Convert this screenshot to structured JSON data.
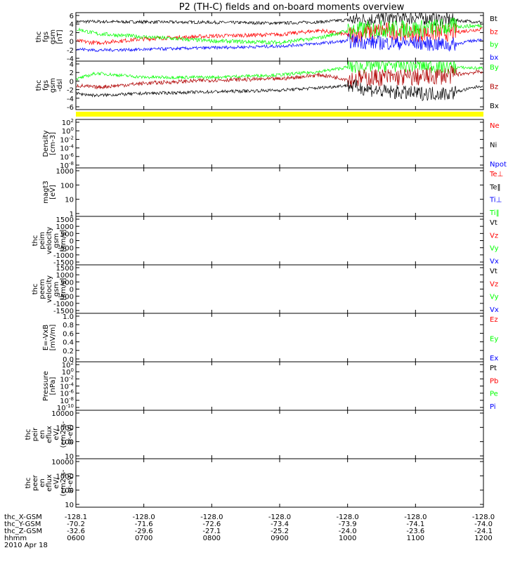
{
  "title": "P2 (TH-C) fields and on-board moments overview",
  "colors": {
    "black": "#000000",
    "red": "#ff0000",
    "green": "#00ff00",
    "blue": "#0000ff",
    "darkred": "#b00000",
    "yellow": "#ffff00",
    "gray": "#666666"
  },
  "chart_data": [
    {
      "type": "line",
      "ylabel": [
        "thc",
        "fgs",
        "gsm",
        "[nT]"
      ],
      "yticks": [
        "6",
        "4",
        "2",
        "0",
        "-2",
        "-4"
      ],
      "ylim": [
        -6,
        6
      ],
      "series": [
        {
          "name": "Bt",
          "color": "black",
          "noise": 0.4,
          "x": [
            6.0,
            7.0,
            8.0,
            9.0,
            9.6,
            10.0,
            10.5,
            11.0,
            11.5,
            12.0
          ],
          "y": [
            3.8,
            3.7,
            3.6,
            3.4,
            3.7,
            4.2,
            4.5,
            4.8,
            4.2,
            3.6
          ]
        },
        {
          "name": "bz",
          "color": "red",
          "noise": 0.5,
          "x": [
            6.0,
            6.3,
            7.0,
            8.0,
            9.0,
            9.6,
            10.0,
            10.5,
            11.0,
            11.5,
            12.0
          ],
          "y": [
            -1.0,
            -1.5,
            -0.5,
            0.2,
            0.6,
            1.6,
            0.5,
            1.5,
            1.0,
            1.0,
            2.0
          ]
        },
        {
          "name": "by",
          "color": "green",
          "noise": 0.5,
          "x": [
            6.0,
            6.3,
            7.0,
            8.0,
            9.0,
            9.6,
            10.0,
            10.5,
            11.0,
            11.5,
            12.0
          ],
          "y": [
            2.0,
            0.8,
            0.0,
            -1.0,
            -1.4,
            -0.2,
            1.5,
            2.0,
            2.0,
            2.5,
            2.8
          ]
        },
        {
          "name": "bx",
          "color": "blue",
          "noise": 0.4,
          "x": [
            6.0,
            6.3,
            7.0,
            8.0,
            9.0,
            9.6,
            10.0,
            10.5,
            11.0,
            11.5,
            12.0
          ],
          "y": [
            -3.0,
            -3.3,
            -3.1,
            -2.7,
            -2.3,
            -1.6,
            -1.0,
            -1.5,
            -1.5,
            -2.0,
            -0.5
          ]
        }
      ]
    },
    {
      "type": "line",
      "ylabel": [
        "thc",
        "fgs",
        "gsm",
        "-dsl"
      ],
      "yticks": [
        "4",
        "2",
        "0",
        "-2",
        "-4",
        "-6"
      ],
      "ylim": [
        -7,
        5
      ],
      "series": [
        {
          "name": "By",
          "color": "green",
          "noise": 0.4,
          "x": [
            6.0,
            6.3,
            7.0,
            8.0,
            9.0,
            9.6,
            10.0,
            10.5,
            11.0,
            11.5,
            12.0
          ],
          "y": [
            0.5,
            2.0,
            1.0,
            1.0,
            1.6,
            2.4,
            3.5,
            4.0,
            4.0,
            3.5,
            3.2
          ]
        },
        {
          "name": "Bz",
          "color": "darkred",
          "noise": 0.5,
          "x": [
            6.0,
            6.3,
            7.0,
            8.0,
            9.0,
            9.6,
            10.0,
            10.5,
            11.0,
            11.5,
            12.0
          ],
          "y": [
            -1.0,
            -1.5,
            -0.5,
            0.3,
            0.6,
            1.6,
            0.5,
            1.0,
            1.0,
            1.5,
            2.5
          ]
        },
        {
          "name": "Bx",
          "color": "black",
          "noise": 0.4,
          "x": [
            6.0,
            6.3,
            7.0,
            8.0,
            9.0,
            9.6,
            10.0,
            10.5,
            11.0,
            11.5,
            12.0
          ],
          "y": [
            -3.0,
            -3.5,
            -3.0,
            -2.6,
            -2.2,
            -1.6,
            -1.0,
            -2.5,
            -3.0,
            -3.0,
            -1.0
          ]
        }
      ]
    },
    {
      "type": "line",
      "ylabel": [
        "Density",
        "[cm-3]"
      ],
      "yticks": [
        "10^2",
        "10^0",
        "10^-2",
        "10^-4",
        "10^-6",
        "10^-8"
      ],
      "legend": [
        {
          "text": "Ne",
          "color": "red"
        },
        {
          "text": "Ni",
          "color": "black"
        },
        {
          "text": "Npot",
          "color": "blue"
        }
      ]
    },
    {
      "type": "line",
      "ylabel": [
        "magt3",
        "[eV]"
      ],
      "yticks": [
        "1000",
        "100",
        "10",
        "1"
      ],
      "legend": [
        {
          "text": "Te⊥",
          "color": "red"
        },
        {
          "text": "Te‖",
          "color": "black"
        },
        {
          "text": "Ti⊥",
          "color": "blue"
        },
        {
          "text": "Ti‖",
          "color": "green"
        }
      ]
    },
    {
      "type": "line",
      "ylabel": [
        "thc",
        "peim",
        "velocity",
        "gsm",
        "[km/s]"
      ],
      "yticks": [
        "1500",
        "1000",
        "500",
        "0",
        "-500",
        "-1000",
        "-1500"
      ],
      "legend": [
        {
          "text": "Vt",
          "color": "black"
        },
        {
          "text": "Vz",
          "color": "red"
        },
        {
          "text": "Vy",
          "color": "green"
        },
        {
          "text": "Vx",
          "color": "blue"
        }
      ]
    },
    {
      "type": "line",
      "ylabel": [
        "thc",
        "peem",
        "velocity",
        "gsm",
        "[km/s]"
      ],
      "yticks": [
        "1500",
        "1000",
        "500",
        "0",
        "-500",
        "-1000",
        "-1500"
      ],
      "legend": [
        {
          "text": "Vt",
          "color": "black"
        },
        {
          "text": "Vz",
          "color": "red"
        },
        {
          "text": "Vy",
          "color": "green"
        },
        {
          "text": "Vx",
          "color": "blue"
        }
      ]
    },
    {
      "type": "line",
      "ylabel": [
        "E=-VxB",
        "[mV/m]"
      ],
      "yticks": [
        "1.0",
        "0.8",
        "0.6",
        "0.4",
        "0.2",
        "0.0"
      ],
      "legend": [
        {
          "text": "Ez",
          "color": "red"
        },
        {
          "text": "Ey",
          "color": "green"
        },
        {
          "text": "Ex",
          "color": "blue"
        }
      ]
    },
    {
      "type": "line",
      "ylabel": [
        "Pressure",
        "[nPa]"
      ],
      "yticks": [
        "10^2",
        "10^0",
        "10^-2",
        "10^-4",
        "10^-6",
        "10^-8",
        "10^-10"
      ],
      "legend": [
        {
          "text": "Pt",
          "color": "black"
        },
        {
          "text": "Pb",
          "color": "red"
        },
        {
          "text": "Pe",
          "color": "green"
        },
        {
          "text": "Pi",
          "color": "blue"
        }
      ]
    },
    {
      "type": "line",
      "ylabel": [
        "thc",
        "peir",
        "en",
        "eflux",
        "eV/",
        "(cm2-s-",
        "sr-eV)"
      ],
      "yticks": [
        "10000",
        "1000",
        "100",
        "10"
      ]
    },
    {
      "type": "line",
      "ylabel": [
        "thc",
        "peer",
        "en",
        "eflux",
        "eV/",
        "(cm2-s-",
        "sr-eV)"
      ],
      "yticks": [
        "10000",
        "1000",
        "100",
        "10"
      ]
    }
  ],
  "legend_top": [
    [
      {
        "text": "Bt",
        "color": "black"
      },
      {
        "text": "bz",
        "color": "red"
      },
      {
        "text": "by",
        "color": "green"
      },
      {
        "text": "bx",
        "color": "blue"
      }
    ],
    [
      {
        "text": "By",
        "color": "green"
      },
      {
        "text": "Bz",
        "color": "darkred"
      },
      {
        "text": "Bx",
        "color": "black"
      }
    ]
  ],
  "xaxis": {
    "xlim": [
      6,
      12
    ],
    "ticks": [
      6,
      7,
      8,
      9,
      10,
      11,
      12
    ],
    "rows": [
      {
        "label": "thc_X-GSM",
        "values": [
          "-128.1",
          "-128.0",
          "-128.0",
          "-128.0",
          "-128.0",
          "-128.0",
          "-128.0"
        ]
      },
      {
        "label": "thc_Y-GSM",
        "values": [
          "-70.2",
          "-71.6",
          "-72.6",
          "-73.4",
          "-73.9",
          "-74.1",
          "-74.0"
        ]
      },
      {
        "label": "thc_Z-GSM",
        "values": [
          "-32.6",
          "-29.6",
          "-27.1",
          "-25.2",
          "-24.0",
          "-23.6",
          "-24.1"
        ]
      },
      {
        "label": "hhmm",
        "values": [
          "0600",
          "0700",
          "0800",
          "0900",
          "1000",
          "1100",
          "1200"
        ]
      }
    ],
    "date": "2010 Apr 18"
  }
}
